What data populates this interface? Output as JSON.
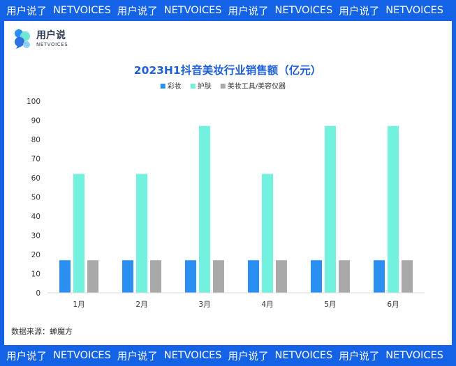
{
  "banner": {
    "segments": [
      "用户说了",
      "NETVOICES",
      "用户说了",
      "NETVOICES",
      "用户说了",
      "NETVOICES",
      "用户说了",
      "NETVOICES"
    ]
  },
  "logo": {
    "title": "用户说",
    "subtitle": "NETVOICES"
  },
  "source": "数据来源：蝉魔方",
  "colors": {
    "frame": "#1463e6",
    "title": "#1f5fd6"
  },
  "chart_data": {
    "type": "bar",
    "title": "2023H1抖音美妆行业销售额（亿元）",
    "xlabel": "",
    "ylabel": "",
    "categories": [
      "1月",
      "2月",
      "3月",
      "4月",
      "5月",
      "6月"
    ],
    "series": [
      {
        "name": "彩妆",
        "color": "#2a8ff0",
        "values": [
          17,
          17,
          17,
          17,
          17,
          17
        ]
      },
      {
        "name": "护肤",
        "color": "#72f2de",
        "values": [
          62,
          62,
          87,
          62,
          87,
          87
        ]
      },
      {
        "name": "美妆工具/美容仪器",
        "color": "#a9a9a9",
        "values": [
          17,
          17,
          17,
          17,
          17,
          17
        ]
      }
    ],
    "ylim": [
      0,
      100
    ],
    "yticks": [
      0,
      10,
      20,
      30,
      40,
      50,
      60,
      70,
      80,
      90,
      100
    ],
    "grid": false,
    "legend": "top-center"
  }
}
